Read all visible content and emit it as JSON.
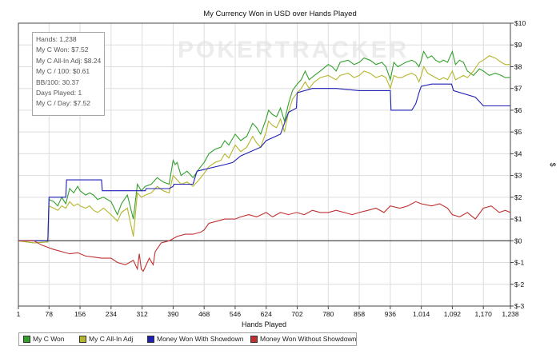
{
  "chart_data": {
    "type": "line",
    "title": "My Currency Won in USD over Hands Played",
    "watermark": "POKERTRACKER",
    "xlabel": "Hands Played",
    "ylabel": "$",
    "xlim": [
      1,
      1238
    ],
    "ylim": [
      -3,
      10
    ],
    "x_ticks": [
      1,
      78,
      156,
      234,
      312,
      390,
      468,
      546,
      624,
      702,
      780,
      858,
      936,
      1014,
      1092,
      1170,
      1238
    ],
    "x_tick_labels": [
      "1",
      "78",
      "156",
      "234",
      "312",
      "390",
      "468",
      "546",
      "624",
      "702",
      "780",
      "858",
      "936",
      "1,014",
      "1,092",
      "1,170",
      "1,238"
    ],
    "y_ticks": [
      -3,
      -2,
      -1,
      0,
      1,
      2,
      3,
      4,
      5,
      6,
      7,
      8,
      9,
      10
    ],
    "y_tick_labels": [
      "$-3",
      "$-2",
      "$-1",
      "$0",
      "$1",
      "$2",
      "$3",
      "$4",
      "$5",
      "$6",
      "$7",
      "$8",
      "$9",
      "$10"
    ],
    "grid": true,
    "legend_position": "bottom-left",
    "stats": [
      "Hands: 1,238",
      "My C Won: $7.52",
      "My C All-In Adj: $8.24",
      "My C / 100: $0.61",
      "BB/100: 30.37",
      "Days Played: 1",
      "My C / Day: $7.52"
    ],
    "series": [
      {
        "name": "My C Won",
        "color": "#33a02c",
        "x": [
          1,
          40,
          75,
          78,
          90,
          100,
          110,
          120,
          130,
          140,
          150,
          156,
          170,
          180,
          190,
          200,
          215,
          234,
          250,
          260,
          275,
          290,
          300,
          310,
          320,
          335,
          350,
          365,
          380,
          390,
          395,
          400,
          410,
          425,
          440,
          455,
          468,
          480,
          495,
          510,
          520,
          530,
          546,
          560,
          575,
          590,
          600,
          610,
          624,
          630,
          640,
          650,
          660,
          670,
          680,
          690,
          702,
          712,
          722,
          732,
          745,
          760,
          780,
          790,
          800,
          810,
          830,
          845,
          858,
          870,
          885,
          900,
          915,
          925,
          936,
          945,
          955,
          965,
          975,
          990,
          1000,
          1008,
          1014,
          1020,
          1030,
          1040,
          1050,
          1060,
          1070,
          1080,
          1092,
          1100,
          1110,
          1120,
          1130,
          1145,
          1160,
          1170,
          1185,
          1200,
          1215,
          1225,
          1238
        ],
        "y": [
          0,
          -0.1,
          -0.05,
          1.9,
          1.8,
          1.6,
          2.0,
          1.7,
          2.4,
          2.2,
          2.5,
          2.3,
          2.1,
          2.2,
          2.1,
          1.9,
          2.0,
          1.8,
          1.2,
          1.7,
          2.1,
          1.0,
          2.6,
          2.3,
          2.5,
          2.6,
          2.9,
          2.7,
          2.6,
          3.7,
          3.5,
          3.6,
          3.0,
          3.2,
          2.9,
          3.3,
          3.6,
          4.0,
          4.2,
          4.3,
          4.6,
          4.4,
          4.9,
          4.6,
          4.8,
          5.4,
          5.2,
          4.9,
          5.6,
          6.0,
          5.8,
          5.7,
          6.1,
          5.5,
          6.3,
          6.9,
          7.2,
          7.4,
          7.8,
          7.4,
          7.6,
          7.8,
          8.1,
          8.0,
          7.8,
          8.2,
          8.3,
          8.1,
          8.2,
          8.4,
          8.3,
          8.1,
          8.2,
          8.0,
          7.4,
          8.2,
          8.0,
          8.1,
          8.2,
          8.3,
          8.2,
          8.0,
          8.3,
          8.7,
          8.4,
          8.5,
          8.3,
          8.2,
          8.3,
          8.2,
          8.7,
          8.1,
          8.3,
          8.2,
          7.8,
          7.6,
          7.9,
          7.8,
          7.6,
          7.7,
          7.6,
          7.5,
          7.5
        ]
      },
      {
        "name": "My C All-In Adj",
        "color": "#b5b52c",
        "x": [
          1,
          40,
          75,
          78,
          90,
          100,
          110,
          120,
          130,
          140,
          150,
          156,
          170,
          180,
          190,
          200,
          215,
          234,
          250,
          260,
          275,
          290,
          300,
          310,
          320,
          335,
          350,
          365,
          380,
          390,
          395,
          400,
          410,
          425,
          440,
          455,
          468,
          480,
          495,
          510,
          520,
          530,
          546,
          560,
          575,
          590,
          600,
          610,
          624,
          630,
          640,
          650,
          660,
          670,
          680,
          690,
          702,
          712,
          722,
          732,
          745,
          760,
          780,
          790,
          800,
          810,
          830,
          845,
          858,
          870,
          885,
          900,
          915,
          925,
          936,
          945,
          955,
          965,
          975,
          990,
          1000,
          1008,
          1014,
          1020,
          1030,
          1040,
          1050,
          1060,
          1070,
          1080,
          1092,
          1100,
          1110,
          1120,
          1130,
          1145,
          1160,
          1170,
          1185,
          1200,
          1215,
          1225,
          1238
        ],
        "y": [
          0,
          -0.1,
          -0.05,
          1.6,
          1.5,
          1.4,
          1.6,
          1.5,
          1.8,
          1.6,
          1.7,
          1.6,
          1.5,
          1.6,
          1.4,
          1.3,
          1.5,
          1.2,
          0.9,
          1.3,
          1.5,
          0.2,
          2.2,
          2.0,
          2.1,
          2.2,
          2.5,
          2.3,
          2.2,
          3.0,
          2.9,
          2.8,
          2.6,
          2.7,
          2.5,
          2.8,
          3.1,
          3.4,
          3.6,
          3.7,
          4.0,
          3.8,
          4.4,
          4.1,
          4.3,
          4.8,
          4.5,
          4.3,
          5.0,
          5.5,
          5.3,
          5.2,
          5.6,
          5.0,
          5.9,
          6.5,
          6.8,
          7.0,
          7.3,
          7.0,
          7.3,
          7.5,
          7.6,
          7.5,
          7.4,
          7.6,
          7.7,
          7.5,
          7.6,
          7.8,
          7.7,
          7.5,
          7.6,
          7.5,
          7.0,
          7.6,
          7.5,
          7.5,
          7.6,
          7.7,
          7.6,
          7.3,
          7.6,
          8.0,
          7.7,
          7.6,
          7.5,
          7.4,
          7.5,
          7.4,
          7.8,
          7.4,
          7.5,
          7.6,
          7.5,
          7.8,
          8.2,
          8.3,
          8.5,
          8.4,
          8.2,
          8.1,
          8.1
        ]
      },
      {
        "name": "Money Won With Showdown",
        "color": "#1f1fb4",
        "x": [
          1,
          75,
          78,
          120,
          122,
          210,
          212,
          234,
          236,
          320,
          322,
          380,
          390,
          392,
          440,
          450,
          520,
          540,
          560,
          610,
          624,
          660,
          680,
          700,
          702,
          740,
          800,
          858,
          936,
          938,
          990,
          1000,
          1010,
          1014,
          1040,
          1090,
          1095,
          1150,
          1170,
          1238
        ],
        "y": [
          0,
          0,
          2.0,
          2.0,
          2.8,
          2.8,
          2.3,
          2.3,
          2.3,
          2.3,
          2.4,
          2.4,
          2.5,
          2.6,
          2.6,
          3.2,
          3.5,
          3.6,
          3.9,
          4.3,
          4.6,
          4.9,
          5.9,
          6.1,
          6.8,
          7.0,
          7.0,
          6.9,
          6.9,
          6.0,
          6.0,
          6.3,
          6.9,
          7.1,
          7.2,
          7.2,
          6.9,
          6.6,
          6.2,
          6.2
        ]
      },
      {
        "name": "Money Won Without Showdown",
        "color": "#c03030",
        "x": [
          1,
          40,
          60,
          75,
          90,
          110,
          130,
          150,
          170,
          190,
          210,
          234,
          250,
          270,
          290,
          300,
          305,
          310,
          315,
          330,
          340,
          345,
          360,
          380,
          390,
          400,
          420,
          440,
          460,
          468,
          480,
          500,
          520,
          546,
          560,
          580,
          600,
          624,
          640,
          660,
          680,
          700,
          720,
          740,
          760,
          780,
          800,
          820,
          840,
          858,
          880,
          900,
          920,
          936,
          960,
          980,
          1000,
          1014,
          1040,
          1060,
          1080,
          1092,
          1110,
          1130,
          1150,
          1170,
          1190,
          1210,
          1225,
          1238
        ],
        "y": [
          0,
          0,
          -0.2,
          -0.3,
          -0.4,
          -0.5,
          -0.6,
          -0.55,
          -0.7,
          -0.75,
          -0.8,
          -0.8,
          -1.0,
          -1.1,
          -0.9,
          -1.3,
          -0.6,
          -1.3,
          -1.4,
          -0.8,
          -1.1,
          -0.5,
          -0.1,
          0.0,
          0.1,
          0.2,
          0.3,
          0.3,
          0.4,
          0.5,
          0.8,
          0.9,
          1.0,
          1.0,
          1.1,
          1.2,
          1.1,
          1.3,
          1.1,
          1.3,
          1.2,
          1.3,
          1.2,
          1.4,
          1.3,
          1.3,
          1.4,
          1.3,
          1.2,
          1.3,
          1.4,
          1.5,
          1.3,
          1.6,
          1.5,
          1.6,
          1.8,
          1.7,
          1.6,
          1.7,
          1.5,
          1.2,
          1.1,
          1.3,
          1.0,
          1.5,
          1.6,
          1.3,
          1.4,
          1.3
        ]
      }
    ]
  }
}
